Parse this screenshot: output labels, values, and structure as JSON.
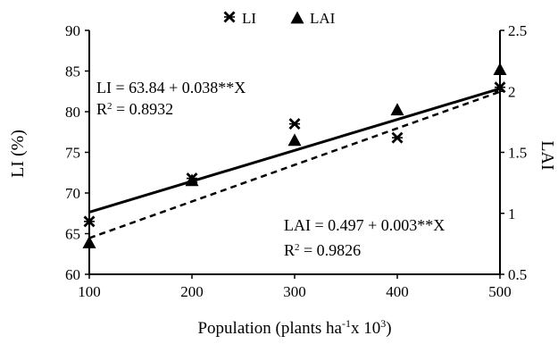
{
  "chart_data": {
    "type": "scatter",
    "x": [
      100,
      200,
      300,
      400,
      500
    ],
    "xlabel": {
      "main": "Population (plants ha",
      "sup1": "-1",
      "mid": "x 10",
      "sup2": "3",
      "end": ")"
    },
    "xlim": [
      100,
      500
    ],
    "xticks": [
      "100",
      "200",
      "300",
      "400",
      "500"
    ],
    "ylabel_left": "LI (%)",
    "ylim_left": [
      60,
      90
    ],
    "yticks_left": [
      "60",
      "65",
      "70",
      "75",
      "80",
      "85",
      "90"
    ],
    "ylabel_right": "LAI",
    "ylim_right": [
      0.5,
      2.5
    ],
    "yticks_right": [
      "0.5",
      "1",
      "1.5",
      "2",
      "2.5"
    ],
    "legend": {
      "position": "top-center",
      "items": [
        {
          "marker": "asterisk-x",
          "label": "LI"
        },
        {
          "marker": "triangle",
          "label": "LAI"
        }
      ]
    },
    "series": [
      {
        "name": "LI",
        "axis": "left",
        "marker": "asterisk-x",
        "values": [
          66.5,
          71.8,
          78.5,
          76.8,
          83.0
        ],
        "fit": {
          "intercept": 63.84,
          "slope": 0.038,
          "line_style": "solid"
        }
      },
      {
        "name": "LAI",
        "axis": "right",
        "marker": "triangle",
        "values": [
          0.76,
          1.27,
          1.6,
          1.85,
          2.18
        ],
        "fit": {
          "intercept": 0.497,
          "slope": 0.003,
          "line_style": "dashed"
        }
      }
    ],
    "annotations": {
      "li_equation": "LI = 63.84 + 0.038**X",
      "li_r2_prefix": "R",
      "li_r2_sup": "2",
      "li_r2_value": " = 0.8932",
      "lai_equation": "LAI = 0.497 + 0.003**X",
      "lai_r2_prefix": "R",
      "lai_r2_sup": "2",
      "lai_r2_value": " = 0.9826"
    },
    "grid": false
  }
}
